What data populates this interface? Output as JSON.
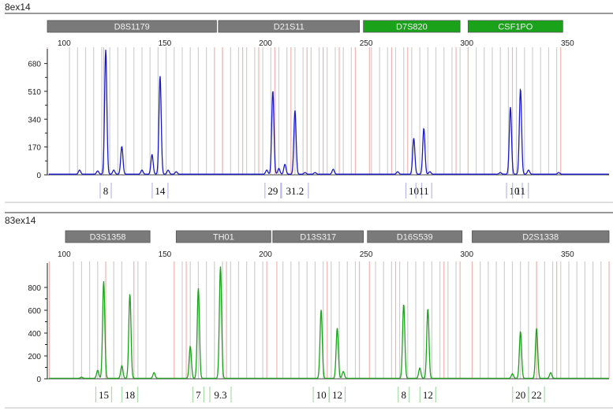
{
  "panels": [
    {
      "title": "8ex14",
      "color": "#1a1acc",
      "box_color": "#b8b8ee",
      "loci": [
        {
          "name": "D8S1179",
          "start": 91,
          "end": 175,
          "color": "#7a7a7a"
        },
        {
          "name": "D21S11",
          "start": 176,
          "end": 246,
          "color": "#7a7a7a"
        },
        {
          "name": "D7S820",
          "start": 248,
          "end": 296,
          "color": "#1aa31a"
        },
        {
          "name": "CSF1PO",
          "start": 300,
          "end": 347,
          "color": "#1aa31a"
        }
      ],
      "alleles": [
        {
          "label": "8",
          "x": 120
        },
        {
          "label": "14",
          "x": 147
        },
        {
          "label": "29",
          "x": 203
        },
        {
          "label": "31.2",
          "x": 214
        },
        {
          "label": "10",
          "x": 273
        },
        {
          "label": "11",
          "x": 278
        },
        {
          "label": "10",
          "x": 323
        },
        {
          "label": "11",
          "x": 326
        }
      ]
    },
    {
      "title": "83ex14",
      "color": "#1aa31a",
      "box_color": "#a8dca8",
      "loci": [
        {
          "name": "D3S1358",
          "start": 100,
          "end": 142,
          "color": "#7a7a7a"
        },
        {
          "name": "TH01",
          "start": 155,
          "end": 202,
          "color": "#7a7a7a"
        },
        {
          "name": "D13S317",
          "start": 203,
          "end": 248,
          "color": "#7a7a7a"
        },
        {
          "name": "D16S539",
          "start": 250,
          "end": 297,
          "color": "#7a7a7a"
        },
        {
          "name": "D2S1338",
          "start": 302,
          "end": 370,
          "color": "#7a7a7a"
        }
      ],
      "alleles": [
        {
          "label": "15",
          "x": 119
        },
        {
          "label": "18",
          "x": 132
        },
        {
          "label": "7",
          "x": 166
        },
        {
          "label": "9.3",
          "x": 177
        },
        {
          "label": "10",
          "x": 227
        },
        {
          "label": "12",
          "x": 235
        },
        {
          "label": "8",
          "x": 268
        },
        {
          "label": "12",
          "x": 280
        },
        {
          "label": "20",
          "x": 326
        },
        {
          "label": "22",
          "x": 334
        }
      ]
    }
  ],
  "chart_data": [
    {
      "type": "line",
      "title": "8ex14",
      "xlabel": "",
      "ylabel": "",
      "xlim": [
        91,
        370
      ],
      "ylim": [
        0,
        760
      ],
      "x_ticks": [
        100,
        150,
        200,
        250,
        300,
        350
      ],
      "y_ticks": [
        0,
        170,
        340,
        510,
        680
      ],
      "grid": "bins",
      "peaks": [
        {
          "x": 107,
          "y": 25
        },
        {
          "x": 116,
          "y": 20
        },
        {
          "x": 120,
          "y": 760
        },
        {
          "x": 124,
          "y": 25
        },
        {
          "x": 128,
          "y": 170
        },
        {
          "x": 138,
          "y": 25
        },
        {
          "x": 143,
          "y": 120
        },
        {
          "x": 147,
          "y": 600
        },
        {
          "x": 151,
          "y": 25
        },
        {
          "x": 155,
          "y": 15
        },
        {
          "x": 200,
          "y": 25
        },
        {
          "x": 203,
          "y": 510
        },
        {
          "x": 206,
          "y": 35
        },
        {
          "x": 209,
          "y": 60
        },
        {
          "x": 214,
          "y": 390
        },
        {
          "x": 219,
          "y": 10
        },
        {
          "x": 224,
          "y": 10
        },
        {
          "x": 233,
          "y": 30
        },
        {
          "x": 265,
          "y": 15
        },
        {
          "x": 273,
          "y": 220
        },
        {
          "x": 278,
          "y": 280
        },
        {
          "x": 281,
          "y": 15
        },
        {
          "x": 316,
          "y": 10
        },
        {
          "x": 321,
          "y": 410
        },
        {
          "x": 326,
          "y": 520
        },
        {
          "x": 330,
          "y": 25
        },
        {
          "x": 345,
          "y": 10
        }
      ],
      "bins": {
        "grey": [
          102,
          106,
          110,
          114,
          118,
          122,
          126,
          130,
          134,
          138,
          142,
          146,
          150,
          154,
          158,
          162,
          166,
          170,
          178,
          182,
          186,
          190,
          194,
          198,
          202,
          206,
          210,
          214,
          218,
          222,
          226,
          230,
          234,
          238,
          242,
          252,
          256,
          260,
          264,
          268,
          272,
          276,
          280,
          284,
          288,
          292,
          296,
          304,
          308,
          312,
          316,
          320,
          324,
          328,
          332,
          336,
          340,
          344
        ],
        "red": [
          91,
          119,
          174,
          178,
          188,
          196,
          204,
          212,
          220,
          228,
          236,
          244,
          251,
          262,
          270,
          294,
          300,
          322,
          346
        ]
      }
    },
    {
      "type": "line",
      "title": "83ex14",
      "xlabel": "",
      "ylabel": "",
      "xlim": [
        91,
        370
      ],
      "ylim": [
        0,
        1000
      ],
      "x_ticks": [
        100,
        150,
        200,
        250,
        300,
        350
      ],
      "y_ticks": [
        0,
        200,
        400,
        600,
        800
      ],
      "grid": "bins",
      "peaks": [
        {
          "x": 108,
          "y": 10
        },
        {
          "x": 116,
          "y": 70
        },
        {
          "x": 119,
          "y": 850
        },
        {
          "x": 128,
          "y": 110
        },
        {
          "x": 132,
          "y": 740
        },
        {
          "x": 144,
          "y": 50
        },
        {
          "x": 162,
          "y": 280
        },
        {
          "x": 166,
          "y": 790
        },
        {
          "x": 177,
          "y": 980
        },
        {
          "x": 227,
          "y": 600
        },
        {
          "x": 235,
          "y": 440
        },
        {
          "x": 238,
          "y": 60
        },
        {
          "x": 268,
          "y": 650
        },
        {
          "x": 276,
          "y": 90
        },
        {
          "x": 280,
          "y": 610
        },
        {
          "x": 322,
          "y": 40
        },
        {
          "x": 326,
          "y": 410
        },
        {
          "x": 334,
          "y": 440
        },
        {
          "x": 341,
          "y": 50
        }
      ],
      "bins": {
        "grey": [
          104,
          108,
          112,
          116,
          124,
          128,
          136,
          140,
          158,
          162,
          166,
          170,
          174,
          178,
          182,
          186,
          190,
          194,
          198,
          208,
          212,
          216,
          220,
          224,
          228,
          232,
          236,
          240,
          244,
          254,
          258,
          262,
          266,
          270,
          274,
          278,
          282,
          286,
          290,
          294,
          306,
          310,
          314,
          318,
          322,
          326,
          330,
          334,
          338,
          342,
          346,
          350,
          354,
          358,
          362,
          366
        ],
        "red": [
          92,
          120,
          134,
          154,
          160,
          180,
          200,
          205,
          230,
          246,
          251,
          264,
          288,
          296,
          302,
          334,
          344,
          370
        ]
      }
    }
  ]
}
